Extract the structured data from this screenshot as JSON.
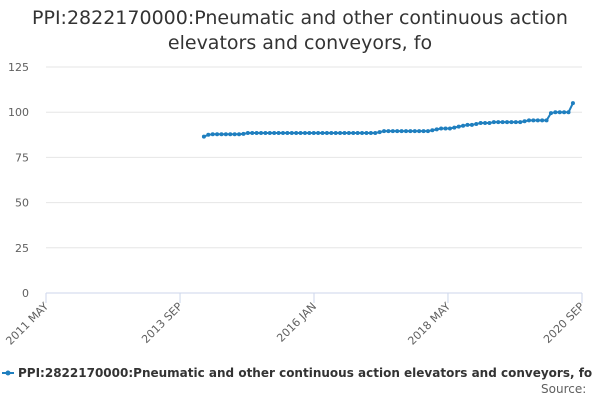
{
  "chart_data": {
    "type": "line",
    "title_lines": [
      "PPI:2822170000:Pneumatic and other continuous action",
      "elevators and conveyors, fo"
    ],
    "x_ticks": [
      {
        "label": "2011 MAY",
        "x": 2011.333
      },
      {
        "label": "2013 SEP",
        "x": 2013.667
      },
      {
        "label": "2016 JAN",
        "x": 2016.0
      },
      {
        "label": "2018 MAY",
        "x": 2018.333
      },
      {
        "label": "2020 SEP",
        "x": 2020.667
      }
    ],
    "y_ticks": [
      0,
      25,
      50,
      75,
      100,
      125
    ],
    "xlim": [
      2011.333,
      2020.667
    ],
    "ylim": [
      0,
      125
    ],
    "grid": true,
    "legend_position": "bottom",
    "series": [
      {
        "name": "PPI:2822170000:Pneumatic and other continuous action elevators and conveyors, fo",
        "color": "#1f7fbf",
        "values": [
          86.5,
          87.5,
          87.8,
          87.8,
          87.8,
          87.8,
          87.8,
          87.8,
          87.8,
          88.0,
          88.5,
          88.5,
          88.5,
          88.5,
          88.5,
          88.5,
          88.5,
          88.5,
          88.5,
          88.5,
          88.5,
          88.5,
          88.5,
          88.5,
          88.5,
          88.5,
          88.5,
          88.5,
          88.5,
          88.5,
          88.5,
          88.5,
          88.5,
          88.5,
          88.5,
          88.5,
          88.5,
          88.5,
          88.5,
          88.5,
          89.0,
          89.5,
          89.5,
          89.5,
          89.5,
          89.5,
          89.5,
          89.5,
          89.5,
          89.5,
          89.5,
          89.5,
          90.0,
          90.5,
          91.0,
          91.0,
          91.0,
          91.5,
          92.0,
          92.5,
          93.0,
          93.0,
          93.5,
          94.0,
          94.0,
          94.0,
          94.5,
          94.5,
          94.5,
          94.5,
          94.5,
          94.5,
          94.5,
          95.0,
          95.5,
          95.5,
          95.5,
          95.5,
          95.5,
          99.5,
          100.0,
          100.0,
          100.0,
          100.0,
          105.0
        ],
        "x_start": 2014.083,
        "x_step": 0.0765
      }
    ],
    "source_label": "Source:"
  }
}
